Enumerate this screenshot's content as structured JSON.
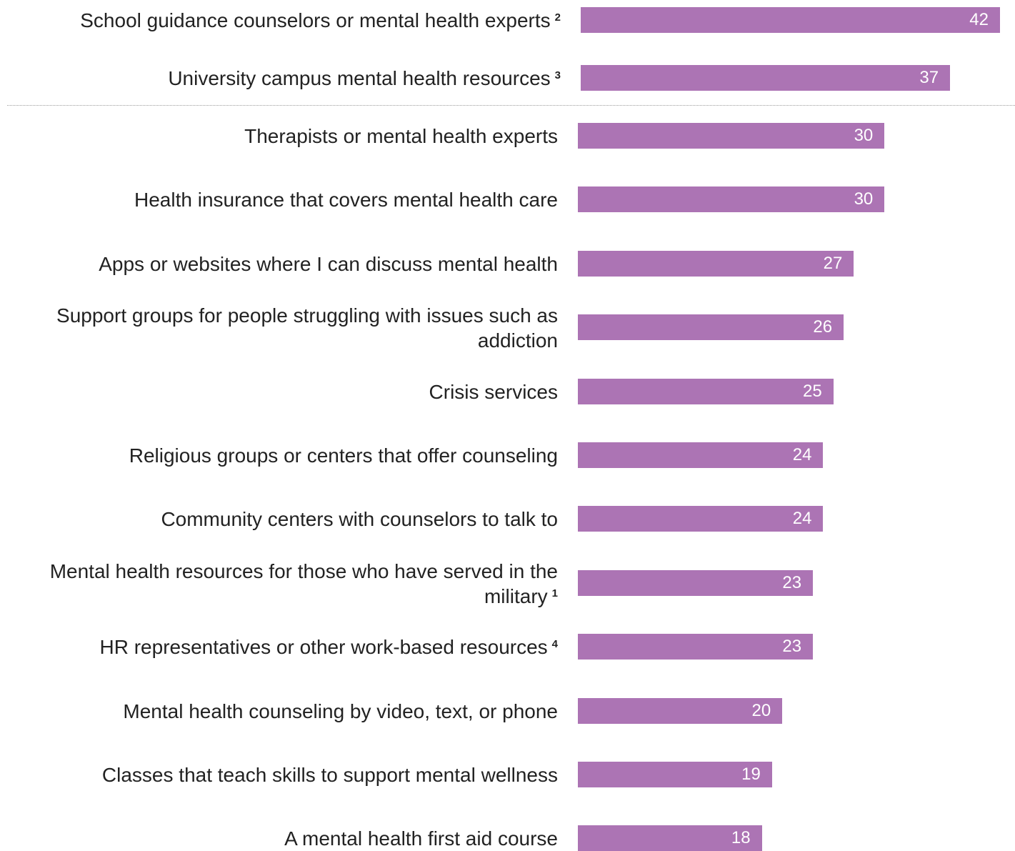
{
  "chart_data": {
    "type": "bar",
    "orientation": "horizontal",
    "title": "",
    "xlabel": "",
    "ylabel": "",
    "grid": false,
    "xlim": [
      0,
      42
    ],
    "bar_color": "#ac74b4",
    "categories": [
      {
        "label": "School guidance counselors or mental health experts",
        "footnote": "2",
        "value": 42
      },
      {
        "label": "University campus mental health resources",
        "footnote": "3",
        "value": 37
      },
      {
        "label": "Therapists or mental health experts",
        "footnote": "",
        "value": 30
      },
      {
        "label": "Health insurance that covers mental health care",
        "footnote": "",
        "value": 30
      },
      {
        "label": "Apps or websites where I can discuss mental health",
        "footnote": "",
        "value": 27
      },
      {
        "label": "Support groups for people struggling with issues such as addiction",
        "footnote": "",
        "value": 26
      },
      {
        "label": "Crisis services",
        "footnote": "",
        "value": 25
      },
      {
        "label": "Religious groups or centers that offer counseling",
        "footnote": "",
        "value": 24
      },
      {
        "label": "Community centers with counselors to talk to",
        "footnote": "",
        "value": 24
      },
      {
        "label": "Mental health resources for those who have served in the military",
        "footnote": "1",
        "value": 23
      },
      {
        "label": "HR representatives or other work-based resources",
        "footnote": "4",
        "value": 23
      },
      {
        "label": "Mental health counseling by video, text, or phone",
        "footnote": "",
        "value": 20
      },
      {
        "label": "Classes that teach skills to support mental wellness",
        "footnote": "",
        "value": 19
      },
      {
        "label": "A mental health first aid course",
        "footnote": "",
        "value": 18
      }
    ]
  }
}
